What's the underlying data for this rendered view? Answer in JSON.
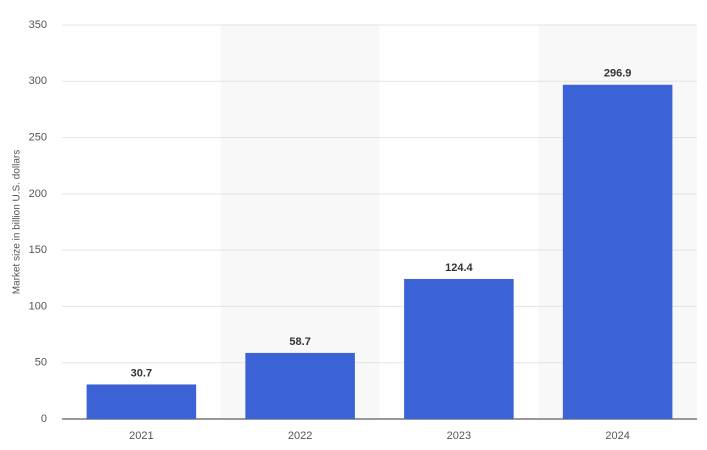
{
  "chart_data": {
    "type": "bar",
    "y_label": "Market size in billion U.S. dollars",
    "categories": [
      "2021",
      "2022",
      "2023",
      "2024"
    ],
    "values": [
      30.7,
      58.7,
      124.4,
      296.9
    ],
    "color": "#3c63d6",
    "ylim": [
      0,
      350
    ],
    "yticks": [
      0,
      50,
      100,
      150,
      200,
      250,
      300,
      350
    ],
    "grid": true
  }
}
